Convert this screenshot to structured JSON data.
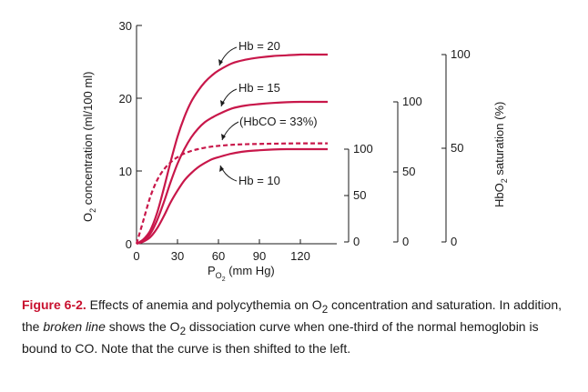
{
  "chart_data": {
    "type": "line",
    "ylabel": {
      "main": "O",
      "sub": "2",
      "rest": " concentration (ml/100 ml)"
    },
    "xlabel": {
      "main": "P",
      "sub": "O",
      "subsub": "2",
      "rest": " (mm Hg)"
    },
    "right_label": {
      "main": "HbO",
      "sub": "2",
      "rest": " saturation (%)"
    },
    "xlim": [
      0,
      140
    ],
    "ylim": [
      0,
      30
    ],
    "x_ticks": [
      "0",
      "30",
      "60",
      "90",
      "120"
    ],
    "y_ticks": [
      "0",
      "10",
      "20",
      "30"
    ],
    "series": [
      {
        "name": "Hb = 20",
        "style": "solid",
        "color": "#c8174a",
        "x": [
          0,
          5,
          10,
          15,
          20,
          25,
          30,
          35,
          40,
          45,
          50,
          55,
          60,
          70,
          80,
          90,
          100,
          110,
          120,
          130,
          140
        ],
        "y": [
          0,
          0.6,
          1.8,
          4.2,
          7.6,
          11.3,
          14.7,
          17.4,
          19.5,
          21.0,
          22.2,
          23.1,
          23.8,
          24.8,
          25.3,
          25.6,
          25.8,
          25.9,
          26.0,
          26.0,
          26.0
        ]
      },
      {
        "name": "Hb = 15",
        "style": "solid",
        "color": "#c8174a",
        "x": [
          0,
          5,
          10,
          15,
          20,
          25,
          30,
          35,
          40,
          45,
          50,
          55,
          60,
          70,
          80,
          90,
          100,
          110,
          120,
          130,
          140
        ],
        "y": [
          0,
          0.45,
          1.35,
          3.2,
          5.7,
          8.5,
          11.0,
          13.0,
          14.6,
          15.8,
          16.7,
          17.3,
          17.8,
          18.6,
          19.0,
          19.2,
          19.35,
          19.45,
          19.5,
          19.5,
          19.5
        ]
      },
      {
        "name": "Hb = 10",
        "style": "solid",
        "color": "#c8174a",
        "x": [
          0,
          5,
          10,
          15,
          20,
          25,
          30,
          35,
          40,
          45,
          50,
          55,
          60,
          70,
          80,
          90,
          100,
          110,
          120,
          130,
          140
        ],
        "y": [
          0,
          0.3,
          0.9,
          2.1,
          3.8,
          5.7,
          7.3,
          8.7,
          9.7,
          10.5,
          11.1,
          11.6,
          11.9,
          12.4,
          12.7,
          12.85,
          12.95,
          13.0,
          13.0,
          13.0,
          13.0
        ]
      },
      {
        "name": "(HbCO = 33%)",
        "style": "dashed",
        "color": "#c8174a",
        "x": [
          0,
          5,
          10,
          15,
          20,
          25,
          30,
          35,
          40,
          45,
          50,
          55,
          60,
          70,
          80,
          90,
          100,
          110,
          120,
          130,
          140
        ],
        "y": [
          0,
          3.2,
          6.4,
          8.7,
          10.2,
          11.2,
          11.9,
          12.4,
          12.75,
          13.0,
          13.2,
          13.35,
          13.45,
          13.6,
          13.68,
          13.72,
          13.75,
          13.78,
          13.8,
          13.8,
          13.8
        ]
      }
    ],
    "saturation_scales": [
      {
        "for": "Hb = 10",
        "ticks": [
          "0",
          "50",
          "100"
        ]
      },
      {
        "for": "Hb = 15",
        "ticks": [
          "0",
          "50",
          "100"
        ]
      },
      {
        "for": "Hb = 20",
        "ticks": [
          "0",
          "50",
          "100"
        ]
      }
    ]
  },
  "caption": {
    "figure_label": "Figure 6-2.",
    "part1": " Effects of anemia and polycythemia on O",
    "sub1": "2",
    "part2": " concentration and saturation. In addition, the ",
    "broken": "broken line",
    "part3": " shows the O",
    "sub2": "2",
    "part4": " dissociation curve when one-third of the normal hemoglobin is bound to CO. Note that the curve is then shifted to the left."
  }
}
